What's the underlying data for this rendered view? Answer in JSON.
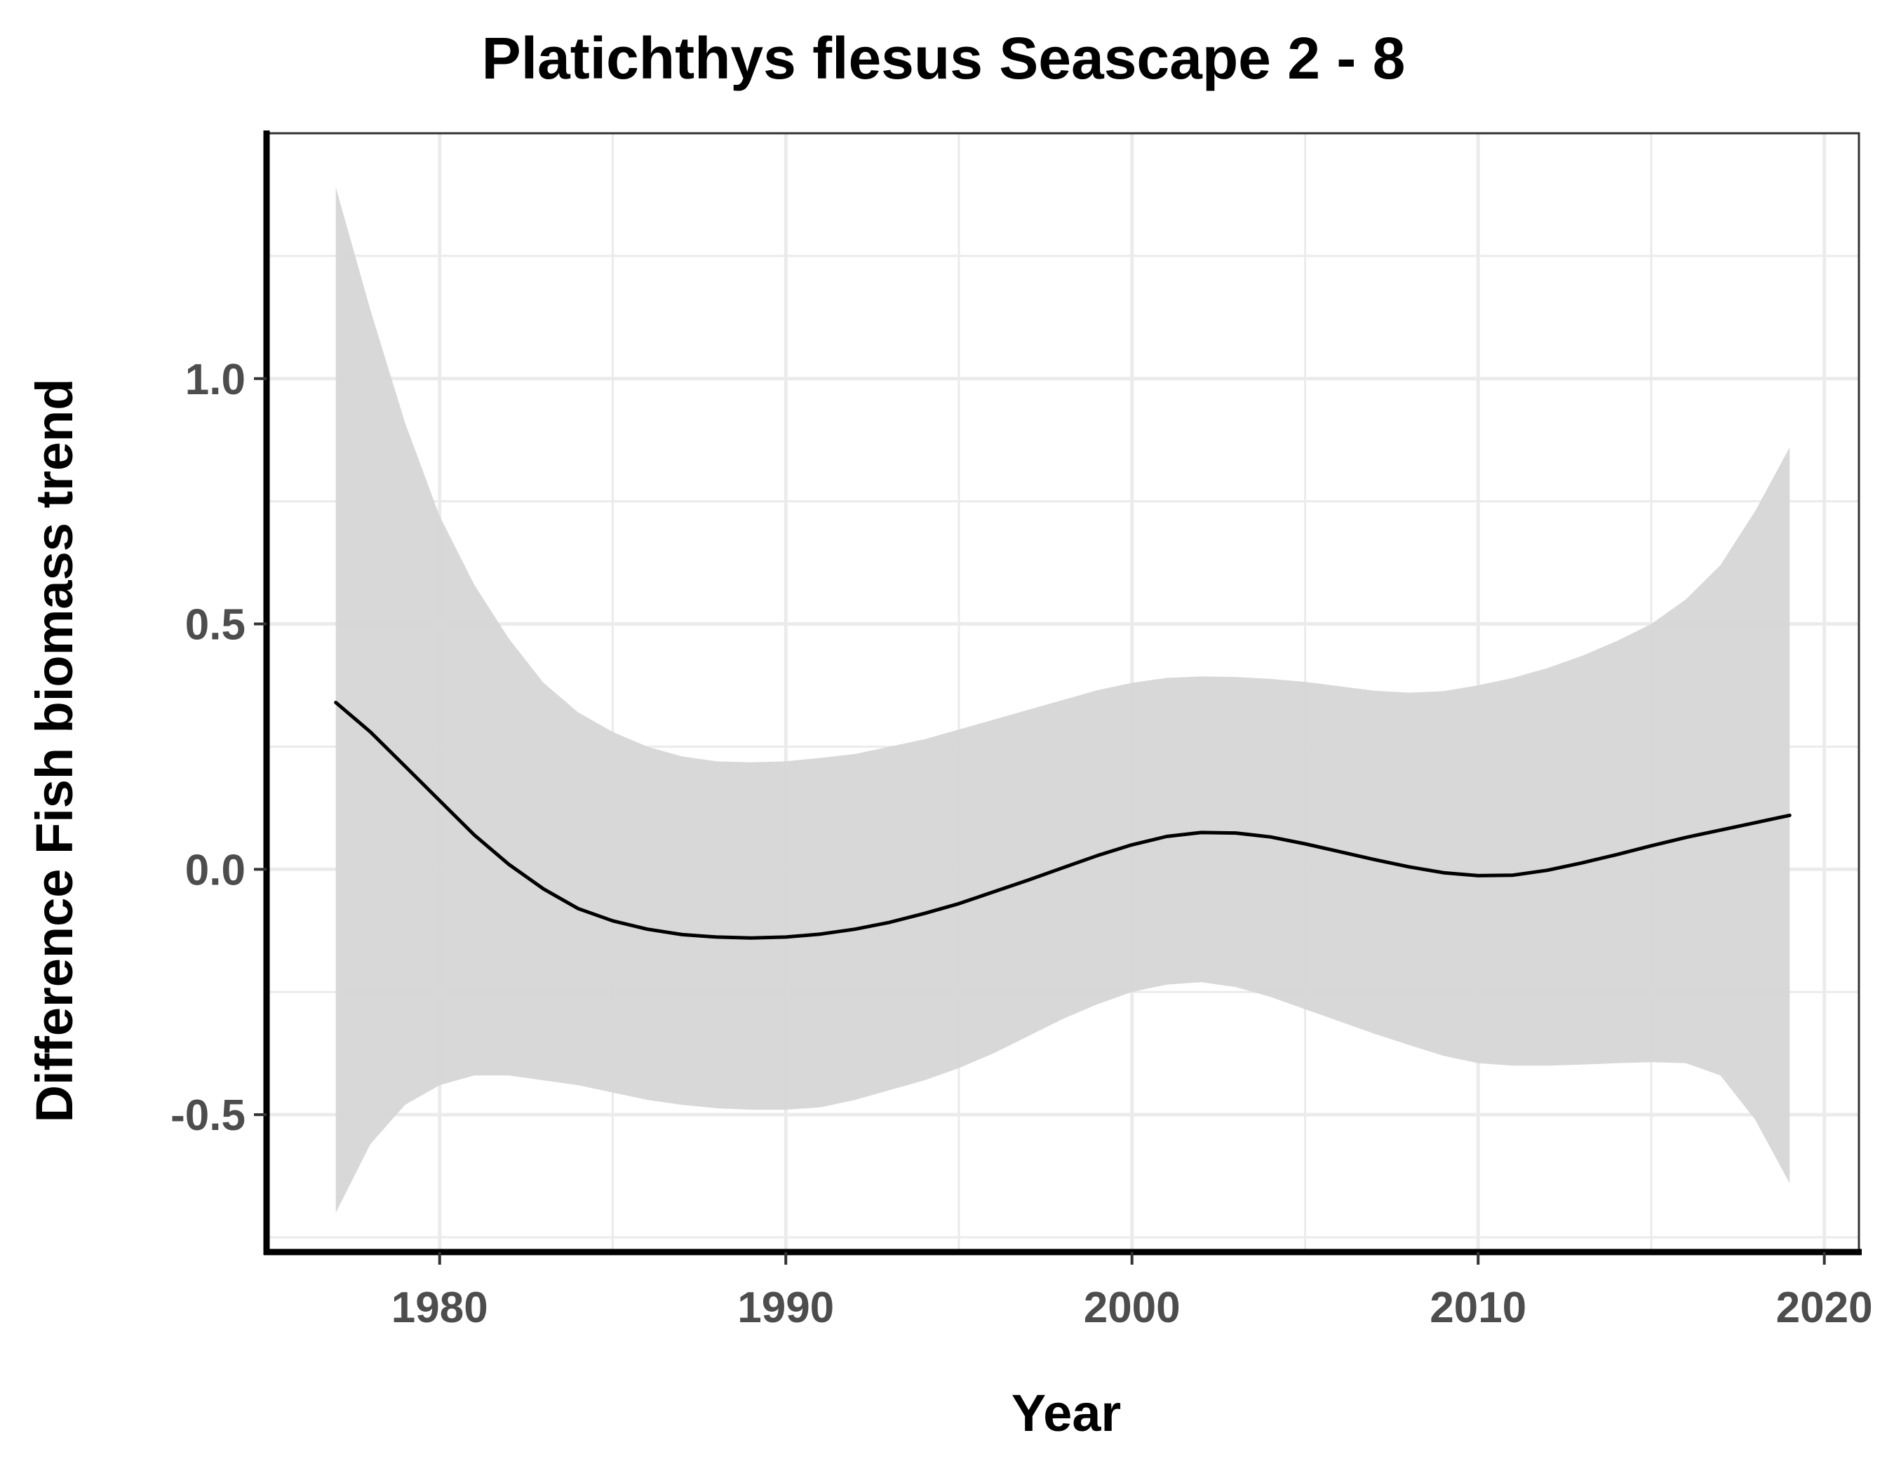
{
  "chart_data": {
    "type": "line",
    "title": "Platichthys flesus Seascape 2 - 8",
    "xlabel": "Year",
    "ylabel": "Difference Fish biomass trend",
    "xlim": [
      1975,
      2021
    ],
    "ylim": [
      -0.78,
      1.5
    ],
    "xticks": [
      1980,
      1990,
      2000,
      2010,
      2020
    ],
    "yticks": [
      -0.5,
      0.0,
      0.5,
      1.0
    ],
    "ytick_labels": [
      "-0.5",
      "0.0",
      "0.5",
      "1.0"
    ],
    "grid": true,
    "legend": "none",
    "series": [
      {
        "x": [
          1977,
          1978,
          1979,
          1980,
          1981,
          1982,
          1983,
          1984,
          1985,
          1986,
          1987,
          1988,
          1989,
          1990,
          1991,
          1992,
          1993,
          1994,
          1995,
          1996,
          1997,
          1998,
          1999,
          2000,
          2001,
          2002,
          2003,
          2004,
          2005,
          2006,
          2007,
          2008,
          2009,
          2010,
          2011,
          2012,
          2013,
          2014,
          2015,
          2016,
          2017,
          2018,
          2019
        ],
        "y": [
          0.34,
          0.28,
          0.21,
          0.14,
          0.07,
          0.01,
          -0.04,
          -0.08,
          -0.105,
          -0.122,
          -0.133,
          -0.138,
          -0.14,
          -0.138,
          -0.132,
          -0.122,
          -0.108,
          -0.09,
          -0.07,
          -0.046,
          -0.022,
          0.003,
          0.028,
          0.05,
          0.067,
          0.075,
          0.074,
          0.066,
          0.052,
          0.036,
          0.02,
          0.005,
          -0.007,
          -0.013,
          -0.012,
          -0.002,
          0.013,
          0.03,
          0.048,
          0.065,
          0.08,
          0.095,
          0.11
        ],
        "lower": [
          -0.7,
          -0.56,
          -0.48,
          -0.44,
          -0.42,
          -0.42,
          -0.43,
          -0.44,
          -0.455,
          -0.47,
          -0.48,
          -0.487,
          -0.49,
          -0.49,
          -0.485,
          -0.47,
          -0.45,
          -0.43,
          -0.405,
          -0.375,
          -0.34,
          -0.305,
          -0.275,
          -0.25,
          -0.235,
          -0.23,
          -0.24,
          -0.26,
          -0.285,
          -0.31,
          -0.335,
          -0.358,
          -0.38,
          -0.395,
          -0.4,
          -0.4,
          -0.398,
          -0.395,
          -0.393,
          -0.395,
          -0.42,
          -0.51,
          -0.64
        ],
        "upper": [
          1.39,
          1.14,
          0.91,
          0.72,
          0.58,
          0.47,
          0.38,
          0.32,
          0.28,
          0.25,
          0.23,
          0.22,
          0.218,
          0.22,
          0.227,
          0.235,
          0.25,
          0.265,
          0.285,
          0.305,
          0.325,
          0.345,
          0.365,
          0.38,
          0.39,
          0.393,
          0.392,
          0.388,
          0.382,
          0.373,
          0.364,
          0.36,
          0.363,
          0.375,
          0.39,
          0.41,
          0.435,
          0.465,
          0.5,
          0.55,
          0.62,
          0.73,
          0.86
        ]
      }
    ],
    "colors": {
      "line": "#000000",
      "ribbon": "#d6d6d6",
      "grid": "#ebebeb",
      "axis": "#000000",
      "tick_text": "#4d4d4d"
    }
  }
}
